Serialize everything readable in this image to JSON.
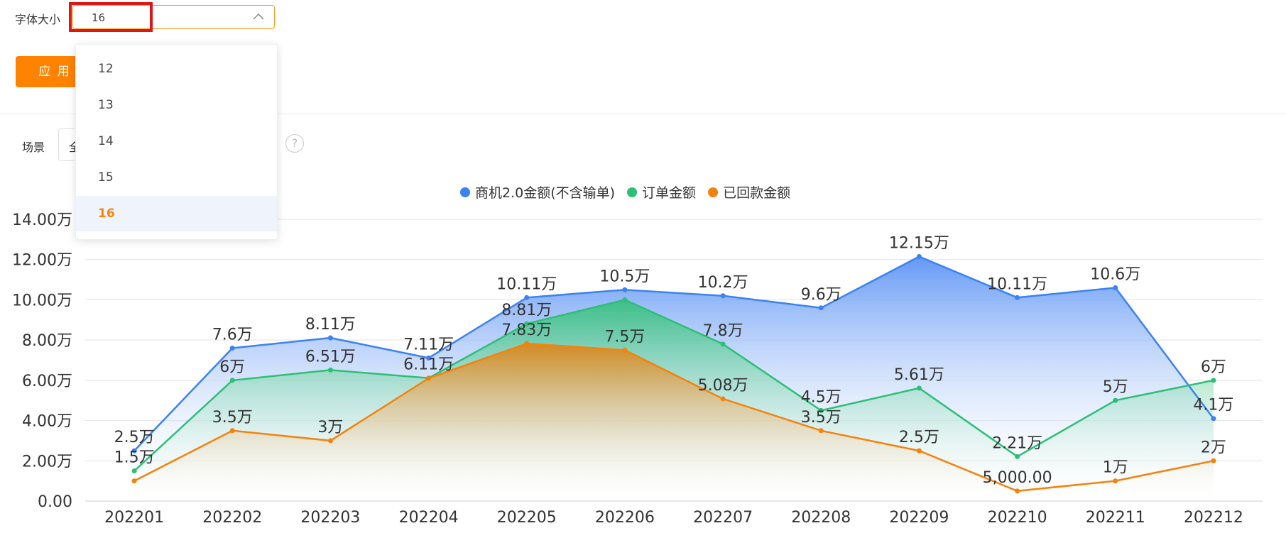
{
  "toolbar": {
    "font_size_label": "字体大小",
    "font_size_value": "16",
    "apply_label": "应 用",
    "scene_label": "场景",
    "scene_value": "全",
    "help_icon": "?"
  },
  "font_size_dropdown": {
    "options": [
      "12",
      "13",
      "14",
      "15",
      "16"
    ],
    "selected": "16"
  },
  "colors": {
    "accent": "#ff8200",
    "highlight": "#e01515",
    "series_blue": "#3b82f6",
    "series_green": "#2dbf76",
    "series_orange": "#f5820d"
  },
  "chart_data": {
    "type": "area",
    "categories": [
      "202201",
      "202202",
      "202203",
      "202204",
      "202205",
      "202206",
      "202207",
      "202208",
      "202209",
      "202210",
      "202211",
      "202212"
    ],
    "ylim": [
      0,
      14
    ],
    "y_ticks": [
      0,
      2,
      4,
      6,
      8,
      10,
      12,
      14
    ],
    "y_tick_labels": [
      "0.00",
      "2.00万",
      "4.00万",
      "6.00万",
      "8.00万",
      "10.00万",
      "12.00万",
      "14.00万"
    ],
    "grid": true,
    "legend_position": "top-center",
    "series": [
      {
        "name": "商机2.0金额(不含输单)",
        "color": "#3b82f6",
        "values": [
          2.5,
          7.6,
          8.11,
          7.11,
          10.11,
          10.5,
          10.2,
          9.6,
          12.15,
          10.11,
          10.6,
          4.1
        ],
        "labels": [
          "2.5万",
          "7.6万",
          "8.11万",
          "7.11万",
          "10.11万",
          "10.5万",
          "10.2万",
          "9.6万",
          "12.15万",
          "10.11万",
          "10.6万",
          "4.1万"
        ]
      },
      {
        "name": "订单金额",
        "color": "#2dbf76",
        "values": [
          1.5,
          6,
          6.51,
          6.11,
          8.81,
          10,
          7.8,
          4.5,
          5.61,
          2.21,
          5,
          6
        ],
        "labels": [
          "1.5万",
          "6万",
          "6.51万",
          "6.11万",
          "8.81万",
          "",
          "7.8万",
          "4.5万",
          "5.61万",
          "2.21万",
          "5万",
          "6万"
        ]
      },
      {
        "name": "已回款金额",
        "color": "#f5820d",
        "values": [
          1,
          3.5,
          3,
          6.1,
          7.83,
          7.5,
          5.08,
          3.5,
          2.5,
          0.5,
          1,
          2
        ],
        "labels": [
          "",
          "3.5万",
          "3万",
          "",
          "7.83万",
          "7.5万",
          "5.08万",
          "3.5万",
          "2.5万",
          "5,000.00",
          "1万",
          "2万"
        ]
      }
    ]
  }
}
